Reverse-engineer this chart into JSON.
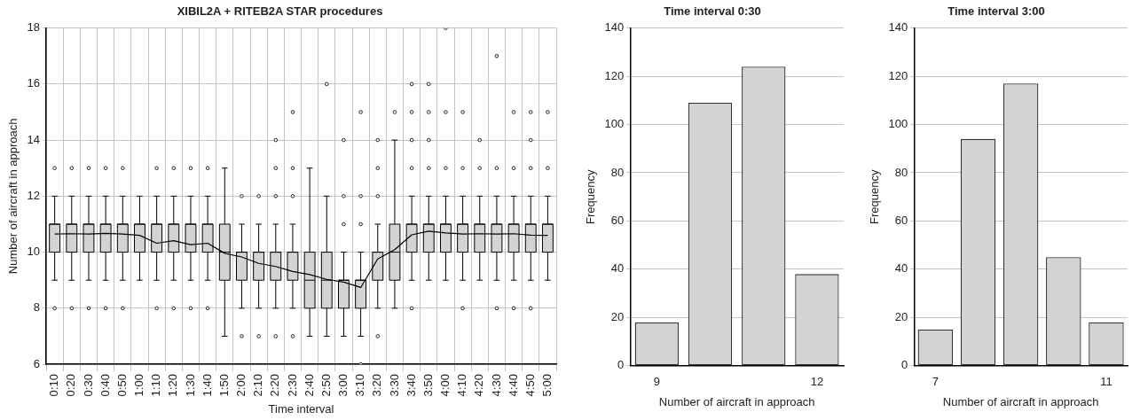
{
  "chart_data": [
    {
      "type": "box",
      "title": "XIBIL2A + RITEB2A STAR procedures",
      "xlabel": "Time interval",
      "ylabel": "Number of aircraft in approach",
      "categories": [
        "0:10",
        "0:20",
        "0:30",
        "0:40",
        "0:50",
        "1:00",
        "1:10",
        "1:20",
        "1:30",
        "1:40",
        "1:50",
        "2:00",
        "2:10",
        "2:20",
        "2:30",
        "2:40",
        "2:50",
        "3:00",
        "3:10",
        "3:20",
        "3:30",
        "3:40",
        "3:50",
        "4:00",
        "4:10",
        "4:20",
        "4:30",
        "4:40",
        "4:50",
        "5:00"
      ],
      "ylim": [
        6,
        18
      ],
      "yticks": [
        6,
        8,
        10,
        12,
        14,
        16,
        18
      ],
      "grid": true,
      "series": [
        {
          "type": "box",
          "color": "#d3d3d3",
          "boxes": [
            {
              "low": 9,
              "q1": 10,
              "median": 11,
              "q3": 11,
              "high": 12,
              "outliers": [
                13,
                8
              ]
            },
            {
              "low": 9,
              "q1": 10,
              "median": 11,
              "q3": 11,
              "high": 12,
              "outliers": [
                13,
                8
              ]
            },
            {
              "low": 9,
              "q1": 10,
              "median": 11,
              "q3": 11,
              "high": 12,
              "outliers": [
                13,
                8
              ]
            },
            {
              "low": 9,
              "q1": 10,
              "median": 11,
              "q3": 11,
              "high": 12,
              "outliers": [
                13,
                8
              ]
            },
            {
              "low": 9,
              "q1": 10,
              "median": 11,
              "q3": 11,
              "high": 12,
              "outliers": [
                13,
                8
              ]
            },
            {
              "low": 9,
              "q1": 10,
              "median": 11,
              "q3": 11,
              "high": 12
            },
            {
              "low": 9,
              "q1": 10,
              "median": 11,
              "q3": 11,
              "high": 12,
              "outliers": [
                13,
                8
              ]
            },
            {
              "low": 9,
              "q1": 10,
              "median": 11,
              "q3": 11,
              "high": 12,
              "outliers": [
                13,
                8
              ]
            },
            {
              "low": 9,
              "q1": 10,
              "median": 11,
              "q3": 11,
              "high": 12,
              "outliers": [
                13,
                8
              ]
            },
            {
              "low": 9,
              "q1": 10,
              "median": 11,
              "q3": 11,
              "high": 12,
              "outliers": [
                13,
                8
              ]
            },
            {
              "low": 7,
              "q1": 9,
              "median": 10,
              "q3": 11,
              "high": 13
            },
            {
              "low": 8,
              "q1": 9,
              "median": 10,
              "q3": 10,
              "high": 11,
              "outliers": [
                12,
                7
              ]
            },
            {
              "low": 8,
              "q1": 9,
              "median": 10,
              "q3": 10,
              "high": 11,
              "outliers": [
                12,
                7
              ]
            },
            {
              "low": 8,
              "q1": 9,
              "median": 10,
              "q3": 10,
              "high": 11,
              "outliers": [
                14,
                13,
                12,
                7
              ]
            },
            {
              "low": 8,
              "q1": 9,
              "median": 10,
              "q3": 10,
              "high": 11,
              "outliers": [
                15,
                13,
                12,
                7
              ]
            },
            {
              "low": 7,
              "q1": 8,
              "median": 9,
              "q3": 10,
              "high": 13
            },
            {
              "low": 7,
              "q1": 8,
              "median": 9,
              "q3": 10,
              "high": 12,
              "outliers": [
                16
              ]
            },
            {
              "low": 7,
              "q1": 8,
              "median": 9,
              "q3": 9,
              "high": 10,
              "outliers": [
                14,
                12,
                11
              ]
            },
            {
              "low": 7,
              "q1": 8,
              "median": 9,
              "q3": 9,
              "high": 10,
              "outliers": [
                15,
                12,
                11,
                6
              ]
            },
            {
              "low": 8,
              "q1": 9,
              "median": 10,
              "q3": 10,
              "high": 11,
              "outliers": [
                14,
                13,
                12,
                7
              ]
            },
            {
              "low": 8,
              "q1": 9,
              "median": 10,
              "q3": 11,
              "high": 14,
              "outliers": [
                15
              ]
            },
            {
              "low": 9,
              "q1": 10,
              "median": 11,
              "q3": 11,
              "high": 12,
              "outliers": [
                16,
                15,
                14,
                13,
                8
              ]
            },
            {
              "low": 9,
              "q1": 10,
              "median": 11,
              "q3": 11,
              "high": 12,
              "outliers": [
                16,
                15,
                14,
                13
              ]
            },
            {
              "low": 9,
              "q1": 10,
              "median": 11,
              "q3": 11,
              "high": 12,
              "outliers": [
                18,
                15,
                13
              ]
            },
            {
              "low": 9,
              "q1": 10,
              "median": 11,
              "q3": 11,
              "high": 12,
              "outliers": [
                15,
                13,
                8
              ]
            },
            {
              "low": 9,
              "q1": 10,
              "median": 11,
              "q3": 11,
              "high": 12,
              "outliers": [
                14,
                13
              ]
            },
            {
              "low": 9,
              "q1": 10,
              "median": 11,
              "q3": 11,
              "high": 12,
              "outliers": [
                17,
                13,
                8
              ]
            },
            {
              "low": 9,
              "q1": 10,
              "median": 11,
              "q3": 11,
              "high": 12,
              "outliers": [
                15,
                13,
                8
              ]
            },
            {
              "low": 9,
              "q1": 10,
              "median": 11,
              "q3": 11,
              "high": 12,
              "outliers": [
                15,
                14,
                13,
                8
              ]
            },
            {
              "low": 9,
              "q1": 10,
              "median": 11,
              "q3": 11,
              "high": 12,
              "outliers": [
                15,
                13
              ]
            }
          ]
        },
        {
          "type": "line",
          "color": "#000000",
          "values": [
            10.65,
            10.66,
            10.65,
            10.67,
            10.65,
            10.6,
            10.32,
            10.41,
            10.27,
            10.32,
            9.96,
            9.83,
            9.6,
            9.49,
            9.31,
            9.2,
            9.03,
            8.93,
            8.74,
            9.76,
            10.09,
            10.62,
            10.75,
            10.69,
            10.65,
            10.66,
            10.65,
            10.66,
            10.61,
            10.6
          ]
        }
      ]
    },
    {
      "type": "bar",
      "title": "Time interval 0:30",
      "xlabel": "Number of aircraft in approach",
      "ylabel": "Frequency",
      "categories": [
        "9",
        null,
        null,
        "12"
      ],
      "values": [
        18,
        109,
        124,
        38
      ],
      "color": "#d3d3d3",
      "ylim": [
        0,
        140
      ],
      "yticks": [
        0,
        20,
        40,
        60,
        80,
        100,
        120,
        140
      ],
      "grid": "y"
    },
    {
      "type": "bar",
      "title": "Time interval 3:00",
      "xlabel": "Number of aircraft in approach",
      "ylabel": "Frequency",
      "categories": [
        "7",
        null,
        null,
        null,
        "11"
      ],
      "values": [
        15,
        94,
        117,
        45,
        18
      ],
      "color": "#d3d3d3",
      "ylim": [
        0,
        140
      ],
      "yticks": [
        0,
        20,
        40,
        60,
        80,
        100,
        120,
        140
      ],
      "grid": "y"
    }
  ]
}
